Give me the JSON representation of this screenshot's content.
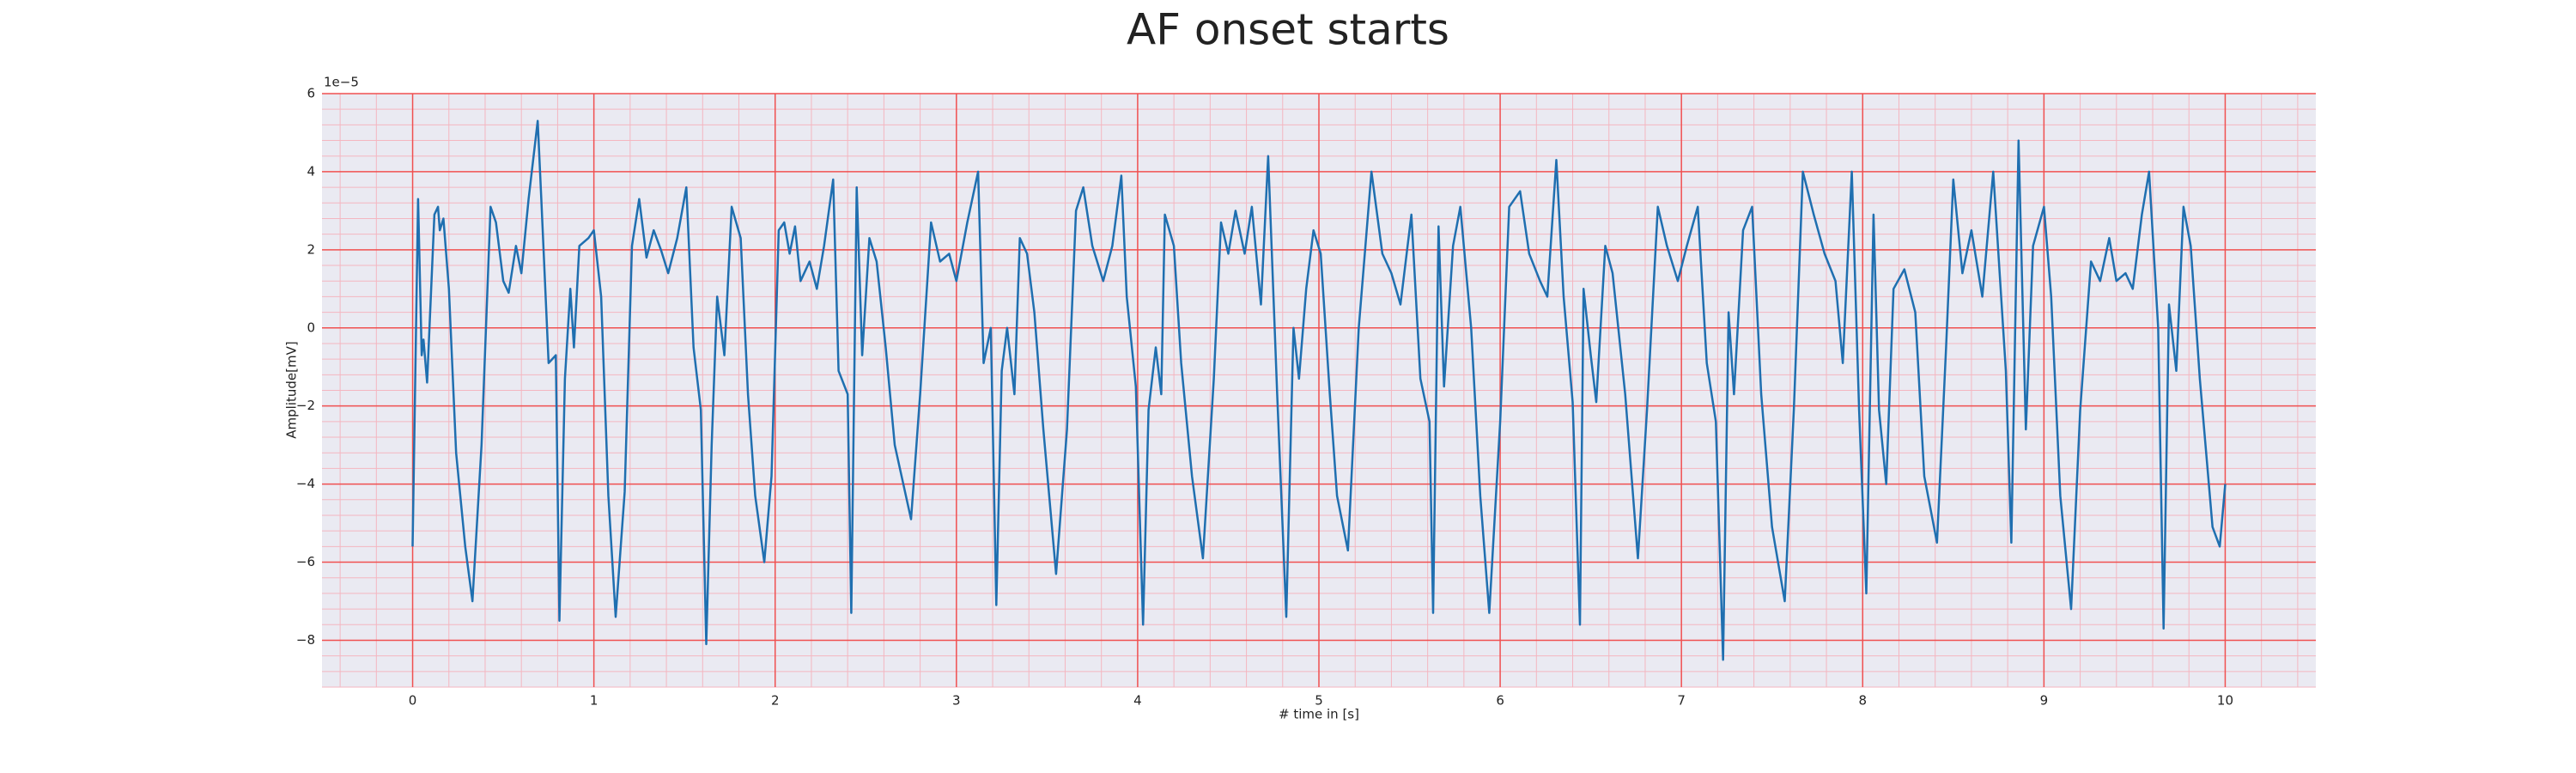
{
  "chart_data": {
    "type": "line",
    "title": "AF onset starts",
    "xlabel": "# time in [s]",
    "ylabel": "Amplitude[mV]",
    "y_offset_label": "1e−5",
    "color": "#1f6fb0",
    "grid": true,
    "minor_grid": true,
    "xlim": [
      -0.5,
      10.5
    ],
    "ylim": [
      -9.2,
      6
    ],
    "xticks": [
      0,
      1,
      2,
      3,
      4,
      5,
      6,
      7,
      8,
      9,
      10
    ],
    "yticks": [
      {
        "value": -8,
        "label": "−8"
      },
      {
        "value": -6,
        "label": "−6"
      },
      {
        "value": -4,
        "label": "−4"
      },
      {
        "value": -2,
        "label": "−2"
      },
      0,
      2,
      4,
      6
    ],
    "x": [
      0,
      0.03,
      0.05,
      0.06,
      0.08,
      0.12,
      0.14,
      0.15,
      0.17,
      0.2,
      0.24,
      0.29,
      0.33,
      0.38,
      0.43,
      0.46,
      0.5,
      0.53,
      0.57,
      0.6,
      0.64,
      0.69,
      0.71,
      0.75,
      0.79,
      0.81,
      0.84,
      0.87,
      0.89,
      0.92,
      0.97,
      1.0,
      1.04,
      1.08,
      1.12,
      1.17,
      1.21,
      1.25,
      1.29,
      1.33,
      1.37,
      1.41,
      1.46,
      1.51,
      1.55,
      1.59,
      1.62,
      1.65,
      1.68,
      1.72,
      1.76,
      1.81,
      1.85,
      1.89,
      1.94,
      1.98,
      2.02,
      2.05,
      2.08,
      2.11,
      2.14,
      2.19,
      2.23,
      2.27,
      2.32,
      2.35,
      2.4,
      2.42,
      2.45,
      2.48,
      2.52,
      2.56,
      2.61,
      2.66,
      2.75,
      2.8,
      2.86,
      2.91,
      2.96,
      3.0,
      3.06,
      3.12,
      3.15,
      3.19,
      3.22,
      3.25,
      3.28,
      3.32,
      3.35,
      3.39,
      3.43,
      3.48,
      3.55,
      3.61,
      3.66,
      3.7,
      3.75,
      3.81,
      3.86,
      3.91,
      3.94,
      3.99,
      4.03,
      4.06,
      4.1,
      4.13,
      4.15,
      4.2,
      4.24,
      4.3,
      4.36,
      4.42,
      4.46,
      4.5,
      4.54,
      4.59,
      4.63,
      4.68,
      4.72,
      4.77,
      4.82,
      4.86,
      4.89,
      4.93,
      4.97,
      5.01,
      5.06,
      5.1,
      5.16,
      5.22,
      5.29,
      5.35,
      5.4,
      5.45,
      5.51,
      5.56,
      5.61,
      5.63,
      5.66,
      5.69,
      5.74,
      5.78,
      5.84,
      5.89,
      5.94,
      6.0,
      6.05,
      6.11,
      6.16,
      6.22,
      6.26,
      6.31,
      6.35,
      6.4,
      6.44,
      6.46,
      6.5,
      6.53,
      6.58,
      6.62,
      6.69,
      6.76,
      6.81,
      6.87,
      6.92,
      6.98,
      7.03,
      7.09,
      7.14,
      7.19,
      7.23,
      7.26,
      7.29,
      7.34,
      7.39,
      7.44,
      7.5,
      7.57,
      7.62,
      7.67,
      7.73,
      7.79,
      7.85,
      7.89,
      7.94,
      7.98,
      8.02,
      8.06,
      8.09,
      8.13,
      8.17,
      8.23,
      8.29,
      8.34,
      8.41,
      8.46,
      8.5,
      8.55,
      8.6,
      8.66,
      8.72,
      8.79,
      8.82,
      8.86,
      8.9,
      8.94,
      9.0,
      9.04,
      9.09,
      9.15,
      9.2,
      9.26,
      9.31,
      9.36,
      9.4,
      9.45,
      9.49,
      9.54,
      9.58,
      9.63,
      9.66,
      9.69,
      9.73,
      9.77,
      9.81,
      9.86,
      9.93,
      9.97,
      10.0
    ],
    "values": [
      -5.6,
      3.3,
      -0.7,
      -0.3,
      -1.4,
      2.9,
      3.1,
      2.5,
      2.8,
      1.0,
      -3.2,
      -5.6,
      -7.0,
      -3.0,
      3.1,
      2.7,
      1.2,
      0.9,
      2.1,
      1.4,
      3.3,
      5.3,
      3.3,
      -0.9,
      -0.7,
      -7.5,
      -1.3,
      1.0,
      -0.5,
      2.1,
      2.3,
      2.5,
      0.8,
      -4.3,
      -7.4,
      -4.2,
      2.1,
      3.3,
      1.8,
      2.5,
      2.0,
      1.4,
      2.3,
      3.6,
      -0.5,
      -2.1,
      -8.1,
      -3.0,
      0.8,
      -0.7,
      3.1,
      2.3,
      -1.7,
      -4.3,
      -6.0,
      -3.8,
      2.5,
      2.7,
      1.9,
      2.6,
      1.2,
      1.7,
      1.0,
      2.1,
      3.8,
      -1.1,
      -1.7,
      -7.3,
      3.6,
      -0.7,
      2.3,
      1.7,
      -0.5,
      -3.0,
      -4.9,
      -1.7,
      2.7,
      1.7,
      1.9,
      1.2,
      2.7,
      4.0,
      -0.9,
      0.0,
      -7.1,
      -1.1,
      0.0,
      -1.7,
      2.3,
      1.9,
      0.4,
      -2.6,
      -6.3,
      -2.6,
      3.0,
      3.6,
      2.1,
      1.2,
      2.1,
      3.9,
      0.8,
      -1.5,
      -7.6,
      -2.1,
      -0.5,
      -1.7,
      2.9,
      2.1,
      -0.9,
      -3.8,
      -5.9,
      -1.3,
      2.7,
      1.9,
      3.0,
      1.9,
      3.1,
      0.6,
      4.4,
      -1.7,
      -7.4,
      0.0,
      -1.3,
      1.0,
      2.5,
      1.9,
      -1.7,
      -4.3,
      -5.7,
      0.0,
      4.0,
      1.9,
      1.4,
      0.6,
      2.9,
      -1.3,
      -2.4,
      -7.3,
      2.6,
      -1.5,
      2.1,
      3.1,
      0.0,
      -4.3,
      -7.3,
      -2.4,
      3.1,
      3.5,
      1.9,
      1.2,
      0.8,
      4.3,
      0.8,
      -1.9,
      -7.6,
      1.0,
      -0.7,
      -1.9,
      2.1,
      1.4,
      -1.7,
      -5.9,
      -2.1,
      3.1,
      2.1,
      1.2,
      2.1,
      3.1,
      -0.9,
      -2.4,
      -8.5,
      0.4,
      -1.7,
      2.5,
      3.1,
      -1.7,
      -5.1,
      -7.0,
      -2.1,
      4.0,
      2.9,
      1.9,
      1.2,
      -0.9,
      4.0,
      -2.1,
      -6.8,
      2.9,
      -2.1,
      -4.0,
      1.0,
      1.5,
      0.4,
      -3.8,
      -5.5,
      -0.5,
      3.8,
      1.4,
      2.5,
      0.8,
      4.0,
      -1.1,
      -5.5,
      4.8,
      -2.6,
      2.1,
      3.1,
      0.8,
      -4.3,
      -7.2,
      -2.1,
      1.7,
      1.2,
      2.3,
      1.2,
      1.4,
      1.0,
      2.9,
      4.0,
      0.0,
      -7.7,
      0.6,
      -1.1,
      3.1,
      2.1,
      -1.3,
      -5.1,
      -5.6,
      -4.0
    ]
  }
}
